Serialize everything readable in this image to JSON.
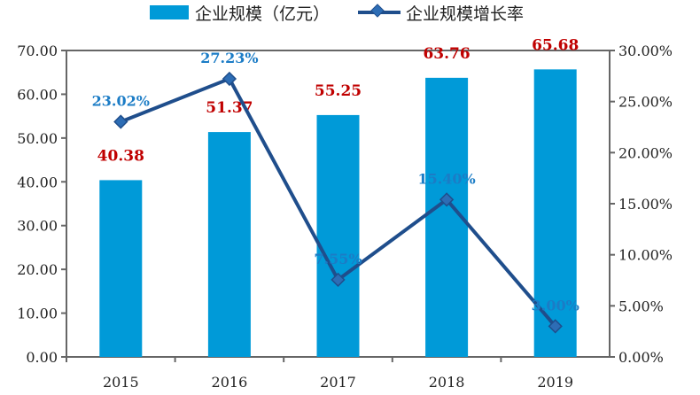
{
  "chart_data": {
    "type": "bar",
    "categories": [
      "2015",
      "2016",
      "2017",
      "2018",
      "2019"
    ],
    "series": [
      {
        "name": "企业规模（亿元）",
        "type": "bar",
        "axis": "left",
        "values": [
          40.38,
          51.37,
          55.25,
          63.76,
          65.68
        ],
        "labels": [
          "40.38",
          "51.37",
          "55.25",
          "63.76",
          "65.68"
        ],
        "color": "#009AD8"
      },
      {
        "name": "企业规模增长率",
        "type": "line",
        "axis": "right",
        "values": [
          23.02,
          27.23,
          7.55,
          15.4,
          3.0
        ],
        "labels": [
          "23.02%",
          "27.23%",
          "7.55%",
          "15.40%",
          "3.00%"
        ],
        "color": "#1F4E8C"
      }
    ],
    "yleft": {
      "ylim": [
        0,
        70
      ],
      "ticks": [
        "0.00",
        "10.00",
        "20.00",
        "30.00",
        "40.00",
        "50.00",
        "60.00",
        "70.00"
      ]
    },
    "yright": {
      "ylim": [
        0,
        30
      ],
      "ticks": [
        "0.00%",
        "5.00%",
        "10.00%",
        "15.00%",
        "20.00%",
        "25.00%",
        "30.00%"
      ]
    },
    "legend": "top",
    "grid": false
  }
}
